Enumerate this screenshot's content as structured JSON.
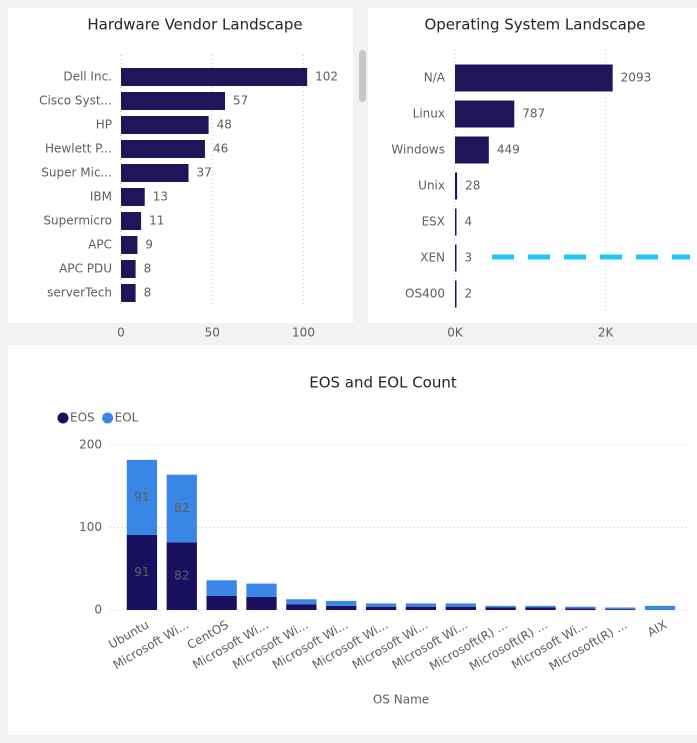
{
  "chart_data": [
    {
      "type": "bar",
      "orientation": "horizontal",
      "title": "Hardware Vendor Landscape",
      "categories": [
        "Dell Inc.",
        "Cisco Syst...",
        "HP",
        "Hewlett P...",
        "Super Mic...",
        "IBM",
        "Supermicro",
        "APC",
        "APC PDU",
        "serverTech"
      ],
      "values": [
        102,
        57,
        48,
        46,
        37,
        13,
        11,
        9,
        8,
        8
      ],
      "color": "#1f1659",
      "xlim": [
        0,
        120
      ],
      "xticks": [
        0,
        50,
        100
      ],
      "grid": true
    },
    {
      "type": "bar",
      "orientation": "horizontal",
      "title": "Operating System Landscape",
      "categories": [
        "N/A",
        "Linux",
        "Windows",
        "Unix",
        "ESX",
        "XEN",
        "OS400"
      ],
      "values": [
        2093,
        787,
        449,
        28,
        4,
        3,
        2
      ],
      "color": "#1f1659",
      "xlim": [
        0,
        3000
      ],
      "xticks": [
        {
          "value": 0,
          "label": "0K"
        },
        {
          "value": 2000,
          "label": "2K"
        }
      ],
      "grid": true
    },
    {
      "type": "stacked_bar",
      "title": "EOS and EOL Count",
      "x_label": "OS Name",
      "categories": [
        "Ubuntu",
        "Microsoft Wi...",
        "CentOS",
        "Microsoft Wi...",
        "Microsoft Wi...",
        "Microsoft Wi...",
        "Microsoft Wi...",
        "Microsoft Wi...",
        "Microsoft Wi...",
        "Microsoft(R) ...",
        "Microsoft(R) ...",
        "Microsoft Wi...",
        "Microsoft(R) ...",
        "AIX"
      ],
      "series": [
        {
          "name": "EOS",
          "color": "#1a1060",
          "values": [
            91,
            82,
            17,
            16,
            7,
            5,
            4,
            4,
            4,
            3,
            3,
            2,
            1,
            0
          ]
        },
        {
          "name": "EOL",
          "color": "#3a86e6",
          "values": [
            91,
            82,
            19,
            16,
            6,
            6,
            4,
            4,
            4,
            2,
            2,
            2,
            2,
            5
          ]
        }
      ],
      "ylim": [
        0,
        200
      ],
      "yticks": [
        0,
        100,
        200
      ],
      "grid": true,
      "legend": "top-left"
    }
  ]
}
